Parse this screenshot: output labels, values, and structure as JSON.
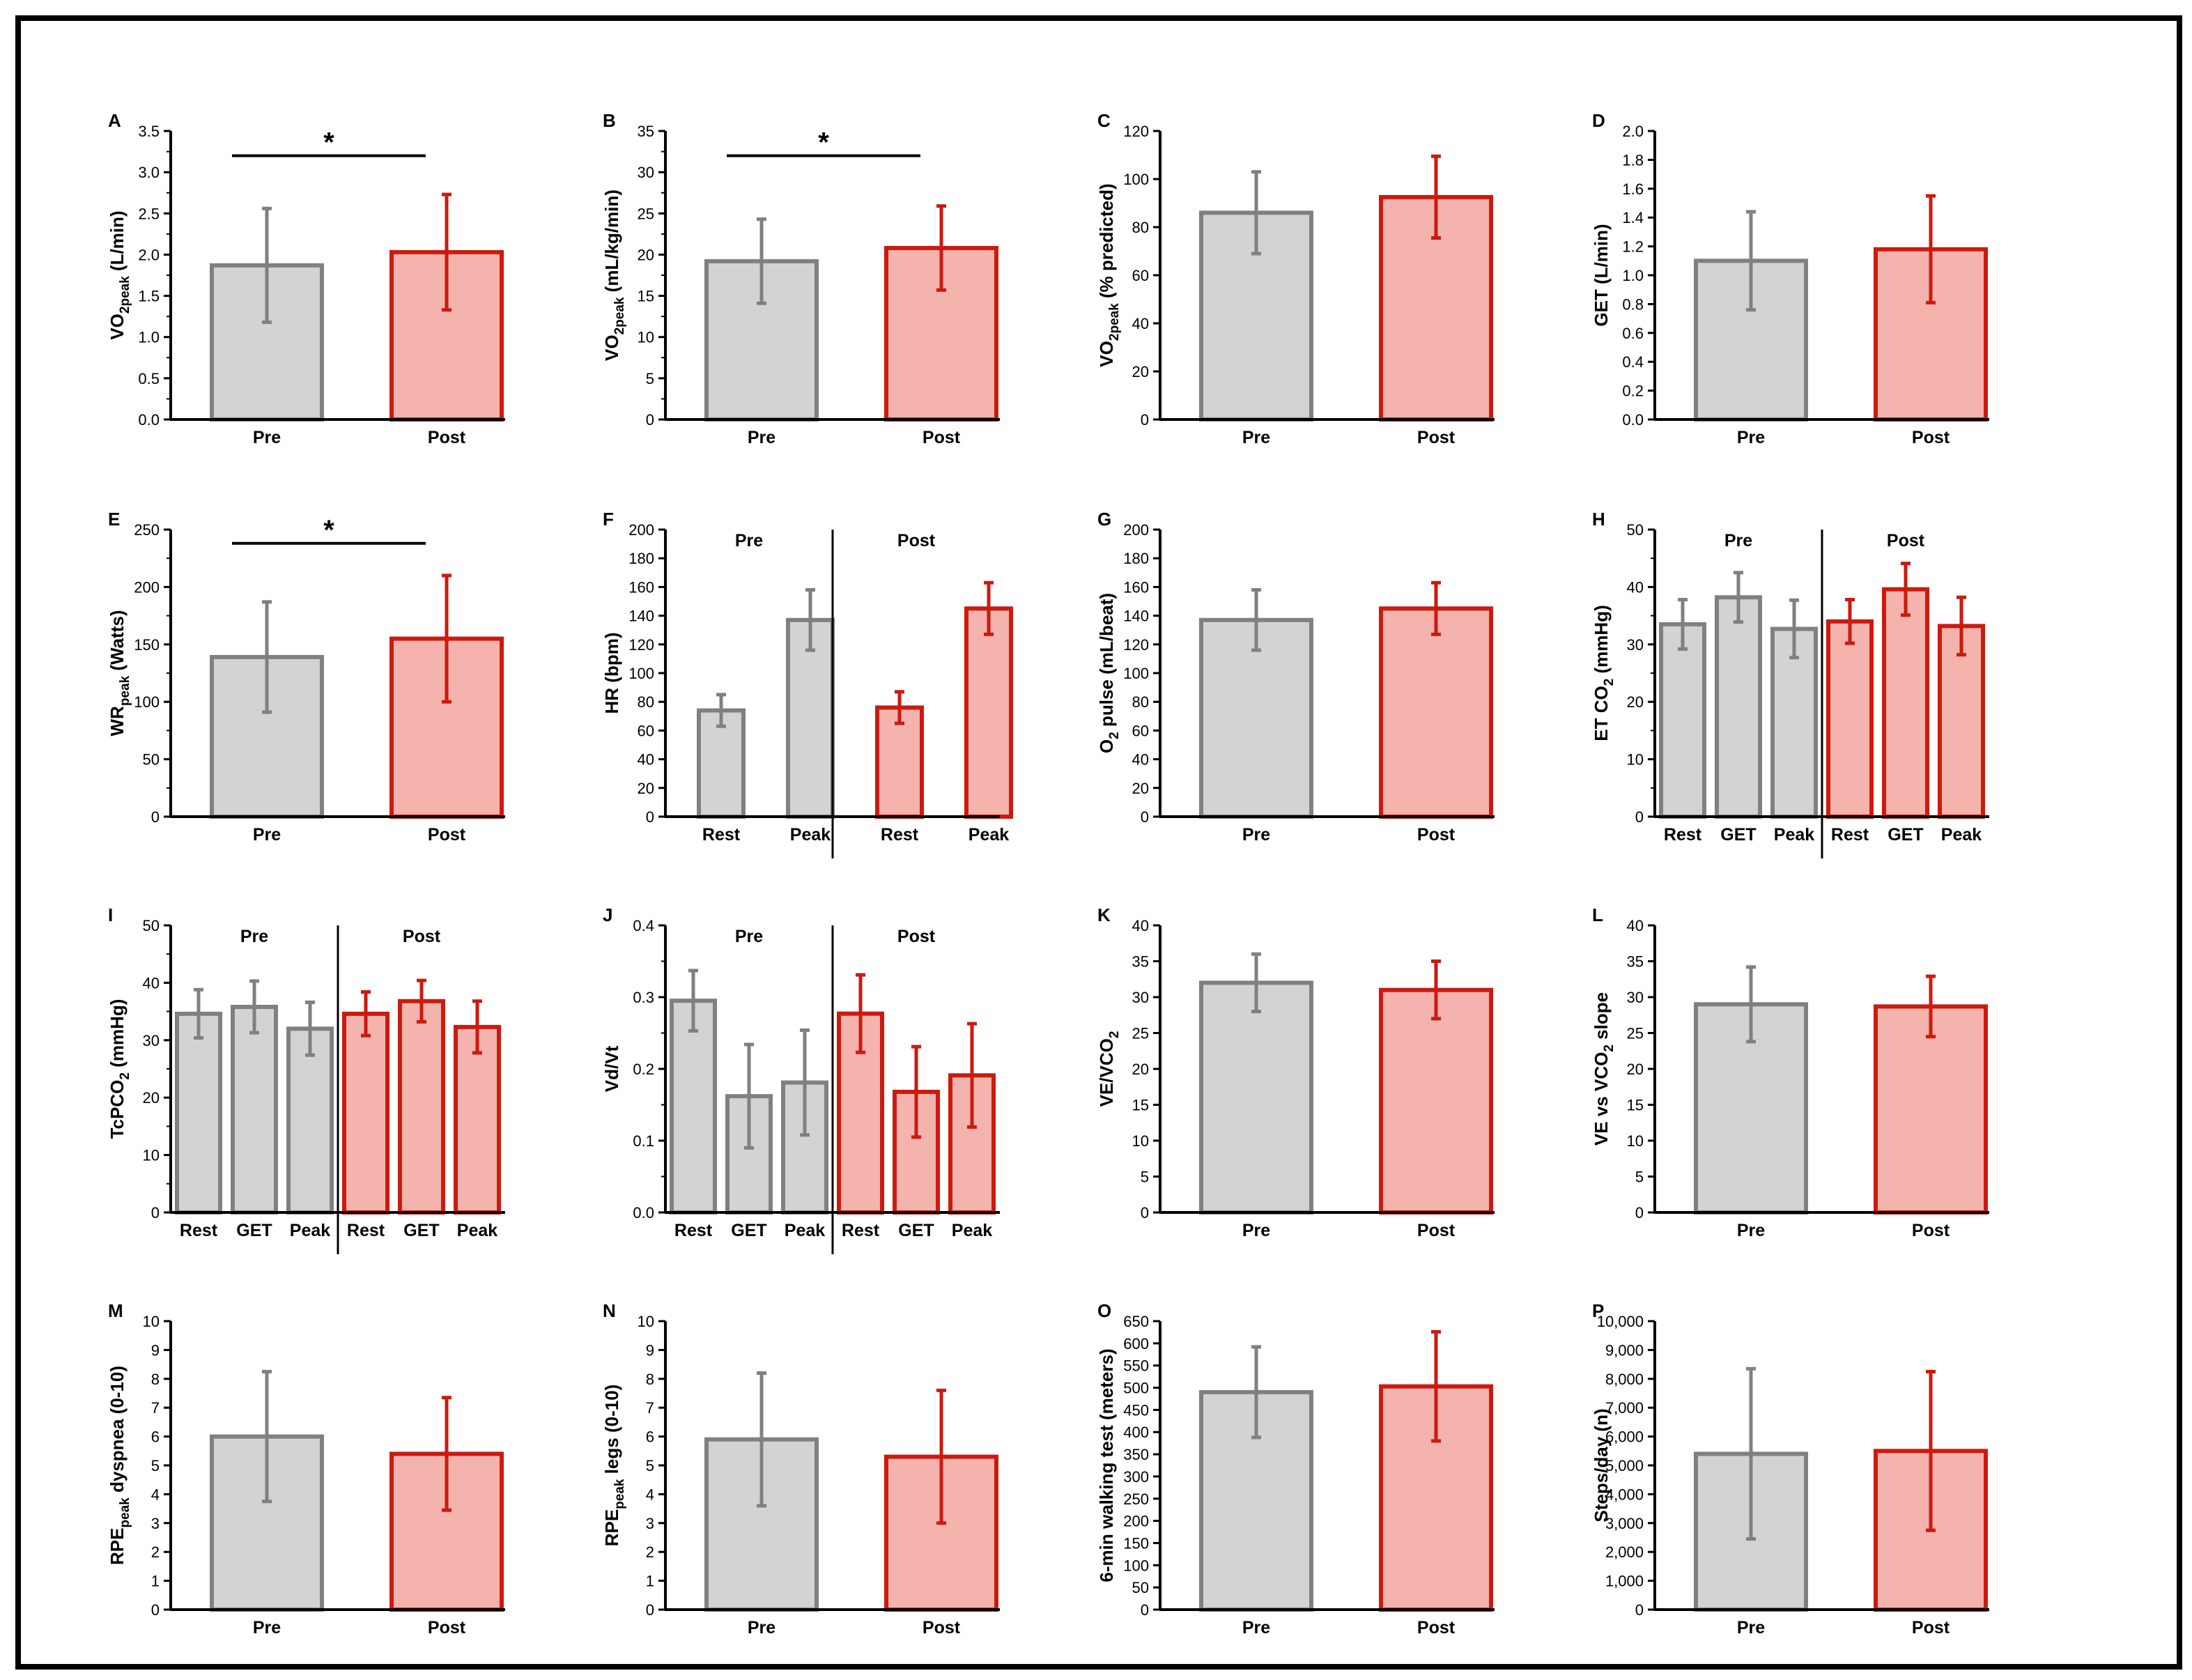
{
  "figure": {
    "colors": {
      "pre_fill": "#d3d3d3",
      "pre_stroke": "#808080",
      "post_fill": "#f4b3ad",
      "post_stroke": "#cc1a0f",
      "axis": "#000000"
    }
  },
  "chart_data": [
    {
      "panel": "A",
      "type": "bar",
      "ylabel": "VO2peak (L/min)",
      "ylabel_main": "VO",
      "ylabel_sub": "2peak",
      "ylabel_rest": " (L/min)",
      "ylim": [
        0,
        3.5
      ],
      "yticks": [
        "0.0",
        "0.5",
        "1.0",
        "1.5",
        "2.0",
        "2.5",
        "3.0",
        "3.5"
      ],
      "minor": true,
      "categories": [
        "Pre",
        "Post"
      ],
      "groups": [],
      "values": [
        1.87,
        2.03
      ],
      "errors": [
        0.69,
        0.7
      ],
      "colors": [
        "pre",
        "post"
      ],
      "significance": {
        "label": "*",
        "from": 0,
        "to": 1,
        "y": 3.2
      }
    },
    {
      "panel": "B",
      "type": "bar",
      "ylabel": "VO2peak (mL/kg/min)",
      "ylabel_main": "VO",
      "ylabel_sub": "2peak",
      "ylabel_rest": " (mL/kg/min)",
      "ylim": [
        0,
        35
      ],
      "yticks": [
        "0",
        "5",
        "10",
        "15",
        "20",
        "25",
        "30",
        "35"
      ],
      "minor": true,
      "categories": [
        "Pre",
        "Post"
      ],
      "groups": [],
      "values": [
        19.2,
        20.8
      ],
      "errors": [
        5.1,
        5.1
      ],
      "colors": [
        "pre",
        "post"
      ],
      "significance": {
        "label": "*",
        "from": 0,
        "to": 1,
        "y": 32
      }
    },
    {
      "panel": "C",
      "type": "bar",
      "ylabel": "VO2peak (% predicted)",
      "ylabel_main": "VO",
      "ylabel_sub": "2peak",
      "ylabel_rest": " (% predicted)",
      "ylim": [
        0,
        120
      ],
      "yticks": [
        "0",
        "20",
        "40",
        "60",
        "80",
        "100",
        "120"
      ],
      "minor": false,
      "categories": [
        "Pre",
        "Post"
      ],
      "groups": [],
      "values": [
        86,
        92.5
      ],
      "errors": [
        17,
        17
      ],
      "colors": [
        "pre",
        "post"
      ],
      "significance": null
    },
    {
      "panel": "D",
      "type": "bar",
      "ylabel": "GET (L/min)",
      "ylabel_main": "GET (L/min)",
      "ylabel_sub": "",
      "ylabel_rest": "",
      "ylim": [
        0,
        2.0
      ],
      "yticks": [
        "0.0",
        "0.2",
        "0.4",
        "0.6",
        "0.8",
        "1.0",
        "1.2",
        "1.4",
        "1.6",
        "1.8",
        "2.0"
      ],
      "minor": false,
      "categories": [
        "Pre",
        "Post"
      ],
      "groups": [],
      "values": [
        1.1,
        1.18
      ],
      "errors": [
        0.34,
        0.37
      ],
      "colors": [
        "pre",
        "post"
      ],
      "significance": null
    },
    {
      "panel": "E",
      "type": "bar",
      "ylabel": "WRpeak (Watts)",
      "ylabel_main": "WR",
      "ylabel_sub": "peak",
      "ylabel_rest": " (Watts)",
      "ylim": [
        0,
        250
      ],
      "yticks": [
        "0",
        "50",
        "100",
        "150",
        "200",
        "250"
      ],
      "minor": true,
      "categories": [
        "Pre",
        "Post"
      ],
      "groups": [],
      "values": [
        139,
        155
      ],
      "errors": [
        48,
        55
      ],
      "colors": [
        "pre",
        "post"
      ],
      "significance": {
        "label": "*",
        "from": 0,
        "to": 1,
        "y": 238
      }
    },
    {
      "panel": "F",
      "type": "bar",
      "ylabel": "HR (bpm)",
      "ylabel_main": "HR (bpm)",
      "ylabel_sub": "",
      "ylabel_rest": "",
      "ylim": [
        0,
        200
      ],
      "yticks": [
        "0",
        "20",
        "40",
        "60",
        "80",
        "100",
        "120",
        "140",
        "160",
        "180",
        "200"
      ],
      "minor": false,
      "categories": [
        "Rest",
        "Peak",
        "Rest",
        "Peak"
      ],
      "groups": [
        "Pre",
        "Post"
      ],
      "values": [
        74,
        137,
        76,
        145
      ],
      "errors": [
        11,
        21,
        11,
        18
      ],
      "colors": [
        "pre",
        "pre",
        "post",
        "post"
      ],
      "significance": null
    },
    {
      "panel": "G",
      "type": "bar",
      "ylabel": "O2 pulse (mL/beat)",
      "ylabel_main": "O",
      "ylabel_sub": "2",
      "ylabel_rest": " pulse (mL/beat)",
      "ylim": [
        0,
        200
      ],
      "yticks": [
        "0",
        "20",
        "40",
        "60",
        "80",
        "100",
        "120",
        "140",
        "160",
        "180",
        "200"
      ],
      "minor": false,
      "categories": [
        "Pre",
        "Post"
      ],
      "groups": [],
      "values": [
        137,
        145
      ],
      "errors": [
        21,
        18
      ],
      "colors": [
        "pre",
        "post"
      ],
      "significance": null
    },
    {
      "panel": "H",
      "type": "bar",
      "ylabel": "ET CO2 (mmHg)",
      "ylabel_main": "ET CO",
      "ylabel_sub": "2",
      "ylabel_rest": " (mmHg)",
      "ylim": [
        0,
        50
      ],
      "yticks": [
        "0",
        "10",
        "20",
        "30",
        "40",
        "50"
      ],
      "minor": true,
      "categories": [
        "Rest",
        "GET",
        "Peak",
        "Rest",
        "GET",
        "Peak"
      ],
      "groups": [
        "Pre",
        "Post"
      ],
      "values": [
        33.5,
        38.2,
        32.7,
        34,
        39.6,
        33.2
      ],
      "errors": [
        4.3,
        4.3,
        5,
        3.8,
        4.5,
        5
      ],
      "colors": [
        "pre",
        "pre",
        "pre",
        "post",
        "post",
        "post"
      ],
      "significance": null
    },
    {
      "panel": "I",
      "type": "bar",
      "ylabel": "TcPCO2 (mmHg)",
      "ylabel_main": "TcPCO",
      "ylabel_sub": "2",
      "ylabel_rest": " (mmHg)",
      "ylim": [
        0,
        50
      ],
      "yticks": [
        "0",
        "10",
        "20",
        "30",
        "40",
        "50"
      ],
      "minor": true,
      "categories": [
        "Rest",
        "GET",
        "Peak",
        "Rest",
        "GET",
        "Peak"
      ],
      "groups": [
        "Pre",
        "Post"
      ],
      "values": [
        34.6,
        35.8,
        32,
        34.6,
        36.8,
        32.3
      ],
      "errors": [
        4.2,
        4.5,
        4.6,
        3.8,
        3.6,
        4.5
      ],
      "colors": [
        "pre",
        "pre",
        "pre",
        "post",
        "post",
        "post"
      ],
      "significance": null
    },
    {
      "panel": "J",
      "type": "bar",
      "ylabel": "Vd/Vt",
      "ylabel_main": "Vd/Vt",
      "ylabel_sub": "",
      "ylabel_rest": "",
      "ylim": [
        0,
        0.4
      ],
      "yticks": [
        "0.0",
        "0.1",
        "0.2",
        "0.3",
        "0.4"
      ],
      "minor": true,
      "categories": [
        "Rest",
        "GET",
        "Peak",
        "Rest",
        "GET",
        "Peak"
      ],
      "groups": [
        "Pre",
        "Post"
      ],
      "values": [
        0.295,
        0.162,
        0.181,
        0.277,
        0.168,
        0.191
      ],
      "errors": [
        0.042,
        0.072,
        0.073,
        0.054,
        0.063,
        0.072
      ],
      "colors": [
        "pre",
        "pre",
        "pre",
        "post",
        "post",
        "post"
      ],
      "significance": null
    },
    {
      "panel": "K",
      "type": "bar",
      "ylabel": "VE/VCO2",
      "ylabel_main": "VE/VCO",
      "ylabel_sub": "2",
      "ylabel_rest": "",
      "ylim": [
        0,
        40
      ],
      "yticks": [
        "0",
        "5",
        "10",
        "15",
        "20",
        "25",
        "30",
        "35",
        "40"
      ],
      "minor": false,
      "categories": [
        "Pre",
        "Post"
      ],
      "groups": [],
      "values": [
        32,
        31
      ],
      "errors": [
        4,
        4
      ],
      "colors": [
        "pre",
        "post"
      ],
      "significance": null
    },
    {
      "panel": "L",
      "type": "bar",
      "ylabel": "VE vs VCO2 slope",
      "ylabel_main": "VE vs VCO",
      "ylabel_sub": "2",
      "ylabel_rest": " slope",
      "ylim": [
        0,
        40
      ],
      "yticks": [
        "0",
        "5",
        "10",
        "15",
        "20",
        "25",
        "30",
        "35",
        "40"
      ],
      "minor": false,
      "categories": [
        "Pre",
        "Post"
      ],
      "groups": [],
      "values": [
        29,
        28.7
      ],
      "errors": [
        5.2,
        4.2
      ],
      "colors": [
        "pre",
        "post"
      ],
      "significance": null
    },
    {
      "panel": "M",
      "type": "bar",
      "ylabel": "RPEpeak dyspnea (0-10)",
      "ylabel_main": "RPE",
      "ylabel_sub": "peak",
      "ylabel_rest": " dyspnea (0-10)",
      "ylim": [
        0,
        10
      ],
      "yticks": [
        "0",
        "1",
        "2",
        "3",
        "4",
        "5",
        "6",
        "7",
        "8",
        "9",
        "10"
      ],
      "minor": false,
      "categories": [
        "Pre",
        "Post"
      ],
      "groups": [],
      "values": [
        6,
        5.4
      ],
      "errors": [
        2.25,
        1.95
      ],
      "colors": [
        "pre",
        "post"
      ],
      "significance": null
    },
    {
      "panel": "N",
      "type": "bar",
      "ylabel": "RPEpeak legs (0-10)",
      "ylabel_main": "RPE",
      "ylabel_sub": "peak",
      "ylabel_rest": " legs (0-10)",
      "ylim": [
        0,
        10
      ],
      "yticks": [
        "0",
        "1",
        "2",
        "3",
        "4",
        "5",
        "6",
        "7",
        "8",
        "9",
        "10"
      ],
      "minor": false,
      "categories": [
        "Pre",
        "Post"
      ],
      "groups": [],
      "values": [
        5.9,
        5.3
      ],
      "errors": [
        2.3,
        2.3
      ],
      "colors": [
        "pre",
        "post"
      ],
      "significance": null
    },
    {
      "panel": "O",
      "type": "bar",
      "ylabel": "6-min walking test (meters)",
      "ylabel_main": "6-min walking test (meters)",
      "ylabel_sub": "",
      "ylabel_rest": "",
      "ylim": [
        0,
        650
      ],
      "yticks": [
        "0",
        "50",
        "100",
        "150",
        "200",
        "250",
        "300",
        "350",
        "400",
        "450",
        "500",
        "550",
        "600",
        "650"
      ],
      "minor": false,
      "categories": [
        "Pre",
        "Post"
      ],
      "groups": [],
      "values": [
        490,
        503
      ],
      "errors": [
        102,
        123
      ],
      "colors": [
        "pre",
        "post"
      ],
      "significance": null
    },
    {
      "panel": "P",
      "type": "bar",
      "ylabel": "Steps/day (n)",
      "ylabel_main": "Steps/day (n)",
      "ylabel_sub": "",
      "ylabel_rest": "",
      "ylim": [
        0,
        10000
      ],
      "yticks": [
        "0",
        "1,000",
        "2,000",
        "3,000",
        "4,000",
        "5,000",
        "6,000",
        "7,000",
        "8,000",
        "9,000",
        "10,000"
      ],
      "minor": false,
      "categories": [
        "Pre",
        "Post"
      ],
      "groups": [],
      "values": [
        5400,
        5500
      ],
      "errors": [
        2950,
        2750
      ],
      "colors": [
        "pre",
        "post"
      ],
      "significance": null
    }
  ]
}
